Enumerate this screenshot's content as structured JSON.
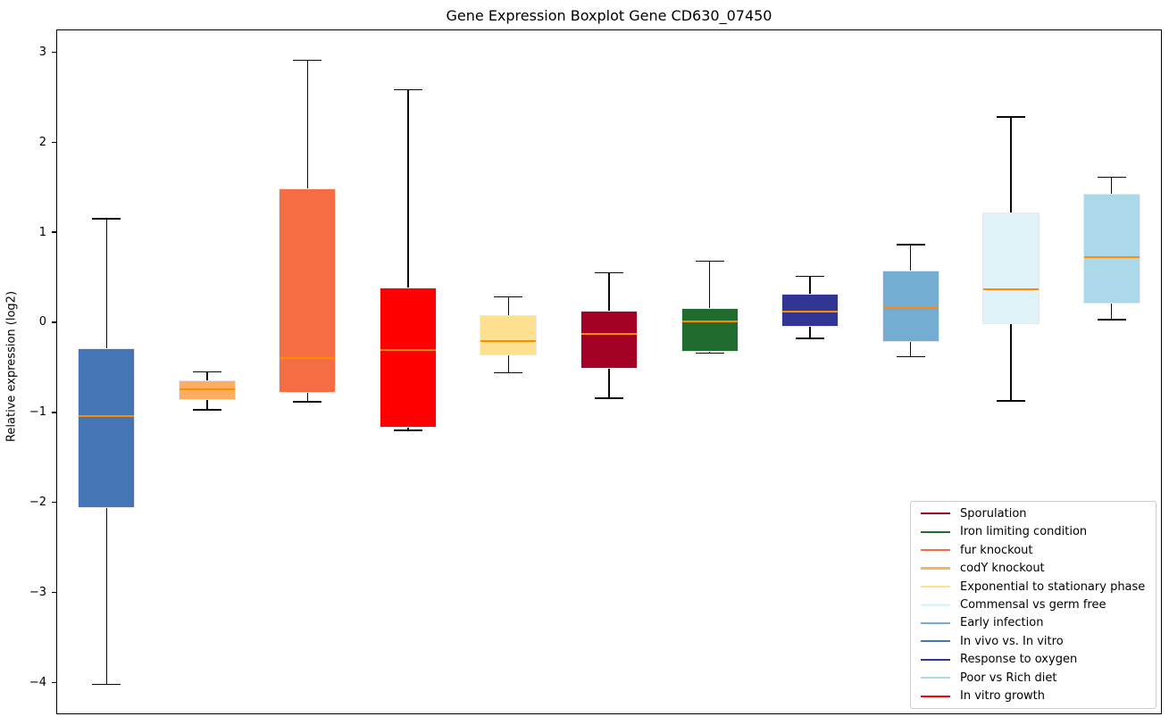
{
  "title": "Gene Expression Boxplot Gene CD630_07450",
  "chart_data": {
    "type": "boxplot",
    "title": "Gene Expression Boxplot Gene CD630_07450",
    "xlabel": "",
    "ylabel": "Relative expression (log2)",
    "ylim": [
      -4.35,
      3.25
    ],
    "yticks": [
      3,
      2,
      1,
      0,
      -1,
      -2,
      -3,
      -4
    ],
    "grid": false,
    "legend_position": "lower right",
    "median_color": "#ff8c00",
    "whisker_color": "#0a0a0a",
    "box_edge_color": "#e8e8ee",
    "boxes": [
      {
        "label": "In vivo vs. In vitro",
        "color": "#4575b4",
        "whislo": -4.02,
        "q1": -2.06,
        "med": -1.04,
        "q3": -0.29,
        "whishi": 1.15
      },
      {
        "label": "codY knockout",
        "color": "#fdae61",
        "whislo": -0.97,
        "q1": -0.86,
        "med": -0.74,
        "q3": -0.64,
        "whishi": -0.55
      },
      {
        "label": "fur knockout",
        "color": "#f46d43",
        "whislo": -0.88,
        "q1": -0.78,
        "med": -0.4,
        "q3": 1.49,
        "whishi": 2.91
      },
      {
        "label": "In vitro growth",
        "color": "#ff0000",
        "whislo": -1.2,
        "q1": -1.17,
        "med": -0.31,
        "q3": 0.39,
        "whishi": 2.58
      },
      {
        "label": "Exponential to stationary phase",
        "color": "#fee090",
        "whislo": -0.56,
        "q1": -0.37,
        "med": -0.21,
        "q3": 0.08,
        "whishi": 0.28
      },
      {
        "label": "Sporulation",
        "color": "#a50026",
        "whislo": -0.84,
        "q1": -0.52,
        "med": -0.13,
        "q3": 0.13,
        "whishi": 0.55
      },
      {
        "label": "Iron limiting condition",
        "color": "#226b2e",
        "whislo": -0.34,
        "q1": -0.33,
        "med": 0.01,
        "q3": 0.16,
        "whishi": 0.68
      },
      {
        "label": "Response to oxygen",
        "color": "#313695",
        "whislo": -0.18,
        "q1": -0.05,
        "med": 0.12,
        "q3": 0.32,
        "whishi": 0.51
      },
      {
        "label": "Early infection",
        "color": "#74add1",
        "whislo": -0.38,
        "q1": -0.22,
        "med": 0.16,
        "q3": 0.57,
        "whishi": 0.86
      },
      {
        "label": "Commensal vs germ free",
        "color": "#e0f3f8",
        "whislo": -0.87,
        "q1": -0.02,
        "med": 0.37,
        "q3": 1.22,
        "whishi": 2.28
      },
      {
        "label": "Poor vs Rich diet",
        "color": "#abd9e9",
        "whislo": 0.03,
        "q1": 0.21,
        "med": 0.72,
        "q3": 1.43,
        "whishi": 1.61
      }
    ],
    "legend": [
      {
        "label": "Sporulation",
        "color": "#a50026"
      },
      {
        "label": "Iron limiting condition",
        "color": "#226b2e"
      },
      {
        "label": "fur knockout",
        "color": "#f46d43"
      },
      {
        "label": "codY knockout",
        "color": "#fdae61"
      },
      {
        "label": "Exponential to stationary phase",
        "color": "#fee090"
      },
      {
        "label": "Commensal vs germ free",
        "color": "#e0f3f8"
      },
      {
        "label": "Early infection",
        "color": "#74add1"
      },
      {
        "label": "In vivo vs. In vitro",
        "color": "#4575b4"
      },
      {
        "label": "Response to oxygen",
        "color": "#313695"
      },
      {
        "label": "Poor vs Rich diet",
        "color": "#abd9e9"
      },
      {
        "label": "In vitro growth",
        "color": "#ff0000"
      }
    ]
  }
}
